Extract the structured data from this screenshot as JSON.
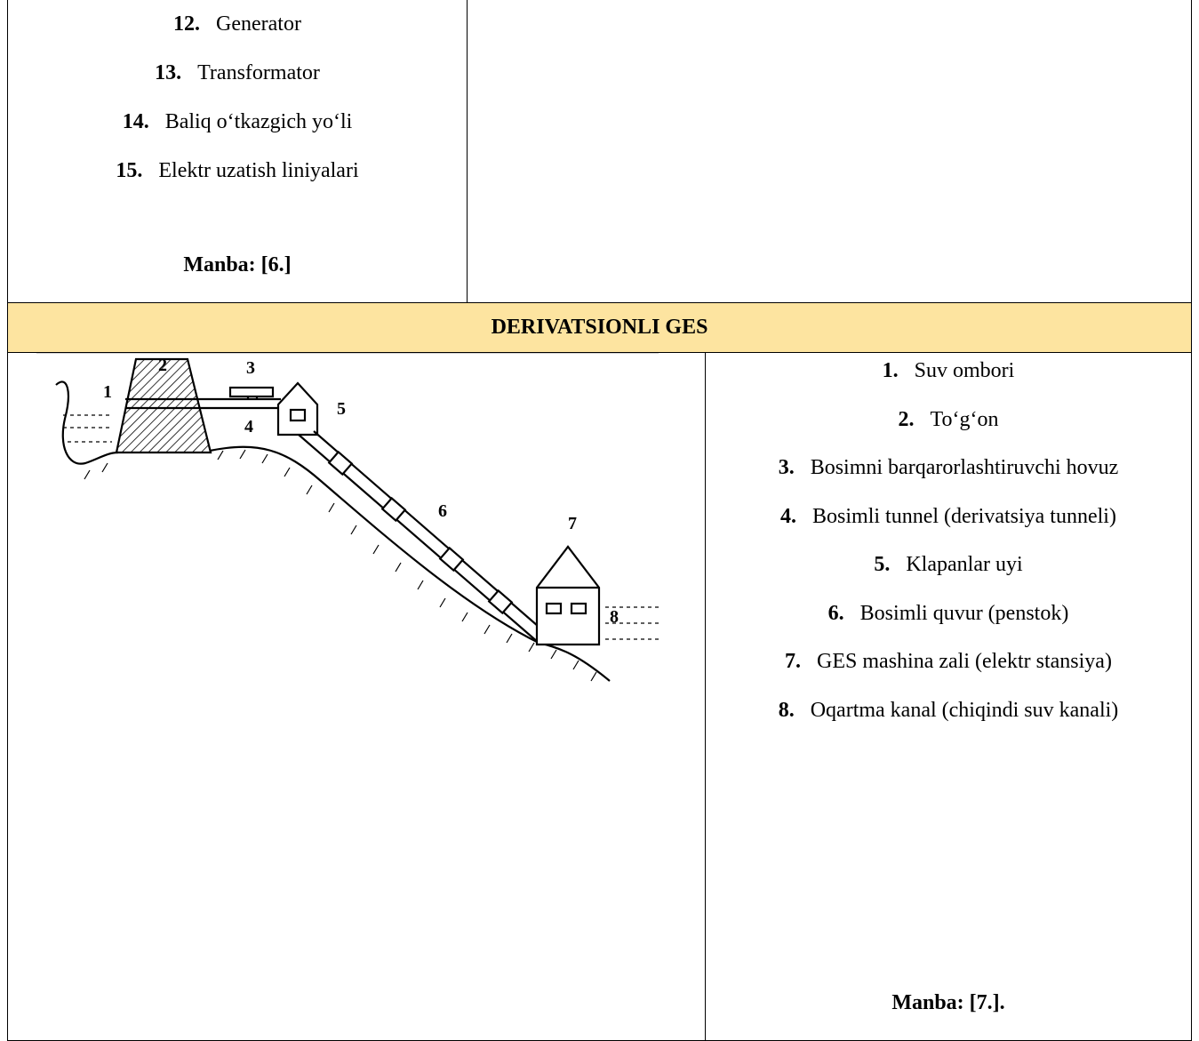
{
  "top": {
    "items": [
      {
        "number": "12.",
        "text": "Generator"
      },
      {
        "number": "13.",
        "text": "Transformator"
      },
      {
        "number": "14.",
        "text": "Baliq o‘tkazgich yo‘li"
      },
      {
        "number": "15.",
        "text": "Elektr uzatish liniyalari"
      }
    ],
    "source": "Manba: [6.]"
  },
  "section_title": "DERIVATSIONLI GES",
  "diagram": {
    "labels": [
      "1",
      "2",
      "3",
      "4",
      "5",
      "6",
      "7",
      "8"
    ]
  },
  "legend": {
    "items": [
      {
        "number": "1.",
        "text": "Suv ombori"
      },
      {
        "number": "2.",
        "text": "To‘g‘on"
      },
      {
        "number": "3.",
        "text": "Bosimni barqarorlashtiruvchi hovuz"
      },
      {
        "number": "4.",
        "text": "Bosimli tunnel (derivatsiya tunneli)"
      },
      {
        "number": "5.",
        "text": "Klapanlar uyi"
      },
      {
        "number": "6.",
        "text": "Bosimli quvur (penstok)"
      },
      {
        "number": "7.",
        "text": "GES mashina zali (elektr stansiya)"
      },
      {
        "number": "8.",
        "text": "Oqartma kanal (chiqindi suv kanali)"
      }
    ],
    "source": "Manba: [7.]."
  }
}
